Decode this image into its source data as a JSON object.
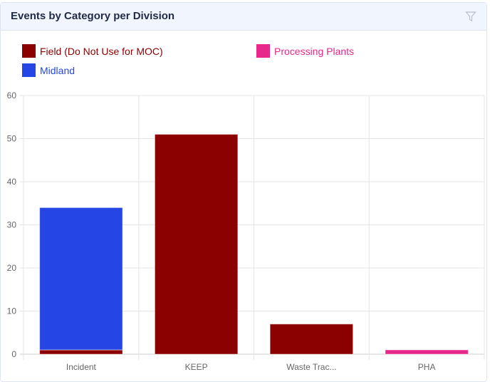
{
  "header": {
    "title": "Events by Category per Division",
    "filter_icon": "filter-icon"
  },
  "chart_data": {
    "type": "bar",
    "stacked": true,
    "categories": [
      "Incident",
      "KEEP",
      "Waste Trac...",
      "PHA"
    ],
    "series": [
      {
        "name": "Field (Do Not Use for MOC)",
        "color": "#8b0000",
        "values": [
          1,
          51,
          7,
          0
        ]
      },
      {
        "name": "Processing Plants",
        "color": "#e8278a",
        "values": [
          0,
          0,
          0,
          1
        ]
      },
      {
        "name": "Midland",
        "color": "#2546e4",
        "values": [
          33,
          0,
          0,
          0
        ]
      }
    ],
    "yticks": [
      "0",
      "10",
      "20",
      "30",
      "40",
      "50",
      "60"
    ],
    "ylim": [
      0,
      60
    ],
    "grid": true,
    "legend": "top"
  }
}
